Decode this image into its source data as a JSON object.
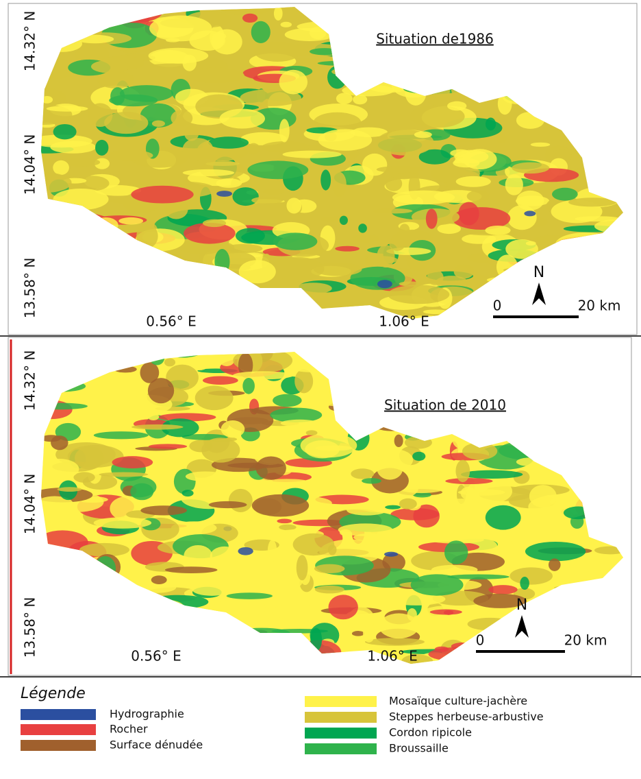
{
  "maps": [
    {
      "title": "Situation de1986",
      "lat_labels": [
        "14.32° N",
        "14.04° N",
        "13.58° N"
      ],
      "lon_labels": [
        "0.56° E",
        "1.06° E"
      ],
      "north": "N",
      "scale_start": "0",
      "scale_end": "20 km"
    },
    {
      "title": "Situation de 2010",
      "lat_labels": [
        "14.32° N",
        "14.04° N",
        "13.58° N"
      ],
      "lon_labels": [
        "0.56° E",
        "1.06° E"
      ],
      "north": "N",
      "scale_start": "0",
      "scale_end": "20 km"
    }
  ],
  "legend": {
    "title": "Légende",
    "items": [
      {
        "label": "Hydrographie",
        "color": "#2b4fa0"
      },
      {
        "label": "Rocher",
        "color": "#e84040"
      },
      {
        "label": "Surface dénudée",
        "color": "#a0602d"
      },
      {
        "label": "Mosaïque culture-jachère",
        "color": "#fff24a"
      },
      {
        "label": "Steppes herbeuse-arbustive",
        "color": "#d7c43a"
      },
      {
        "label": "Cordon ripicole",
        "color": "#00a651"
      },
      {
        "label": "Broussaille",
        "color": "#2fb34c"
      }
    ]
  }
}
